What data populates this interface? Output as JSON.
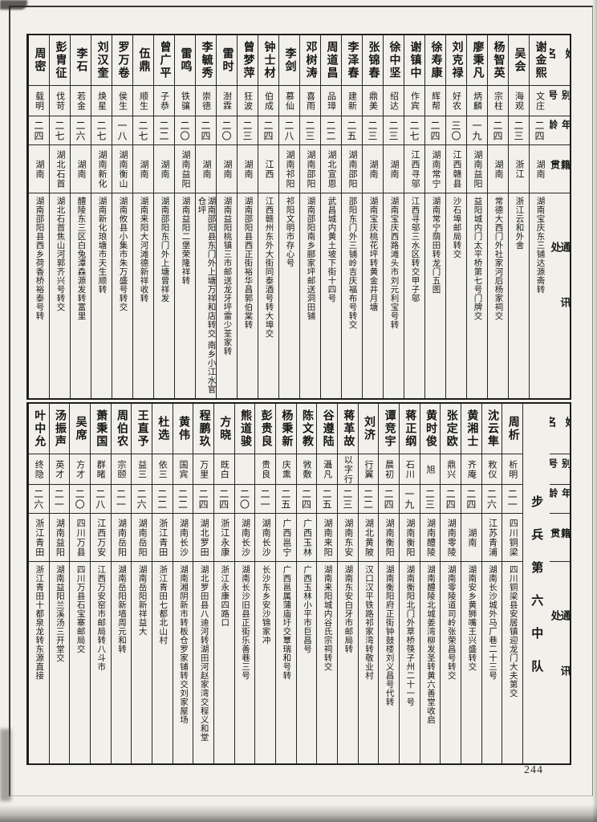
{
  "page": {
    "number": "244"
  },
  "headers": {
    "name": "姓名",
    "alias": "别号",
    "age": "年龄",
    "native": "籍贯",
    "address": "通讯处"
  },
  "section_title": "步兵第六中队",
  "top_table": {
    "entries": [
      {
        "name": "谢金熙",
        "alias": "文庄",
        "age": "二四",
        "native": "湖南",
        "address": "湖南宝庆东三铺达源斋转"
      },
      {
        "name": "吴会",
        "alias": "海观",
        "age": "二三",
        "native": "浙江",
        "address": "浙江云和外舍"
      },
      {
        "name": "杨智英",
        "alias": "宗柱",
        "age": "二四",
        "native": "湖南",
        "address": "常德大西门外社家河后杨家祠交"
      },
      {
        "name": "廖秉凡",
        "alias": "炳麟",
        "age": "一九",
        "native": "湖南益阳",
        "address": "益阳城内门太平桥第七号门牌交"
      },
      {
        "name": "刘克禄",
        "alias": "好农",
        "age": "三〇",
        "native": "江西赣县",
        "address": "沙石埠邮局转交"
      },
      {
        "name": "徐寿康",
        "alias": "辉帮",
        "age": "二四",
        "native": "湖南常宁",
        "address": "湖南常宁荫田转龙门五图"
      },
      {
        "name": "谢镇中",
        "alias": "作宾",
        "age": "二七",
        "native": "江西寻邬",
        "address": "江西寻邬三水区转交甲子邬"
      },
      {
        "name": "徐中坚",
        "alias": "绍达",
        "age": "二三",
        "native": "湖南",
        "address": "湖南宝庆西路滩头市刘元利宝号转"
      },
      {
        "name": "张锦春",
        "alias": "鼎美",
        "age": "二三",
        "native": "湖南",
        "address": "湖南宝庆桃花坪转黄金井月塘"
      },
      {
        "name": "李泽春",
        "alias": "建新",
        "age": "二五",
        "native": "湖南邵阳",
        "address": "邵阳东门外三铺岭吉庆福布号转交"
      },
      {
        "name": "周道昌",
        "alias": "品璋",
        "age": "二二",
        "native": "湖北宣恩",
        "address": "武昌城内黄土坡下街十四号"
      },
      {
        "name": "邓树涛",
        "alias": "喜雨",
        "age": "二三",
        "native": "湖南邵阳",
        "address": "湖南邵阳南乡郦家坪邮送洞田铺"
      },
      {
        "name": "李剑",
        "alias": "慕仙",
        "age": "二八",
        "native": "湖南祁阳",
        "address": "祁阳文明市存心号"
      },
      {
        "name": "钟士材",
        "alias": "伯成",
        "age": "二四",
        "native": "江西",
        "address": "江西赣州东外大街同泰酒号转大埠交"
      },
      {
        "name": "曾梦萍",
        "alias": "狂波",
        "age": "二三",
        "native": "湖南",
        "address": "湖南邵阳县西正街裕华昌郭伯棠转"
      },
      {
        "name": "雷时",
        "alias": "澍霖",
        "age": "二〇",
        "native": "湖南",
        "address": "湖南益阳桃镇三市邮送龙牙坪雷少荃家转"
      },
      {
        "name": "李毓秀",
        "alias": "崇德",
        "age": "二四",
        "native": "湖南",
        "address": "湖南邵阳县东门外上塘万祥和店转交 南乡小江水官仓坪"
      },
      {
        "name": "雷鸣",
        "alias": "铁骧",
        "age": "二〇",
        "native": "湖南益阳",
        "address": "湖南益阳二堡荣隆祥转"
      },
      {
        "name": "曾广平",
        "alias": "子恭",
        "age": "二二",
        "native": "湖南",
        "address": "湖南邵阳东门外上塘曾祥发"
      },
      {
        "name": "伍鼎",
        "alias": "顺生",
        "age": "二七",
        "native": "湖南",
        "address": "湖南来阳大河滩德新祥收转"
      },
      {
        "name": "罗万卷",
        "alias": "侯生",
        "age": "一八",
        "native": "湖南衡山",
        "address": "湖南攸县小集市朱万盛号转交"
      },
      {
        "name": "刘汉奎",
        "alias": "焕星",
        "age": "二七",
        "native": "湖南新化",
        "address": "湖南新化琅塘市天生顺转"
      },
      {
        "name": "李石",
        "alias": "若金",
        "age": "二六",
        "native": "湖南",
        "address": "醴陵东三区白兔潭森源发转富里"
      },
      {
        "name": "彭胄征",
        "alias": "伐苛",
        "age": "二七",
        "native": "湖北石首",
        "address": "湖北石首焦山河郭齐兴号转交"
      },
      {
        "name": "周密",
        "alias": "载明",
        "age": "二四",
        "native": "湖南",
        "address": "湖南邵阳县西乡荷香桥裕泰号转"
      }
    ]
  },
  "bottom_table": {
    "entries": [
      {
        "name": "周析",
        "alias": "析明",
        "age": "二一",
        "native": "四川铜梁",
        "address": "四川铜梁县安居镇迎龙门大夫第交"
      },
      {
        "name": "沈云隼",
        "alias": "敉仪",
        "age": "二六",
        "native": "江苏青浦",
        "address": "湖南长沙城外马厂巷二十三号"
      },
      {
        "name": "黄湘士",
        "alias": "齐庵",
        "age": "二四",
        "native": "湖南",
        "address": "湖南安乡黄狮嘴王兴盛转交"
      },
      {
        "name": "张定欧",
        "alias": "鼎兴",
        "age": "二四",
        "native": "湖南零陵",
        "address": "湖南零陵道司岭张荣昌号转交"
      },
      {
        "name": "黄时俊",
        "alias": "旭",
        "age": "二三",
        "native": "湖南醴陵",
        "address": "湖南醴陵北城姜湾柳发圣转黄六善堂收启"
      },
      {
        "name": "蒋正纲",
        "alias": "石川",
        "age": "一九",
        "native": "湖南衡阳",
        "address": "湖南衡阳北门外草桥筷子州二十一号"
      },
      {
        "name": "谭竞宇",
        "alias": "晨初",
        "age": "二四",
        "native": "湖南衡阳",
        "address": "湖南衡阳府正街钟鼓楼刘义昌号代转"
      },
      {
        "name": "刘济",
        "alias": "行翼",
        "age": "二二",
        "native": "湖北黄陂",
        "address": "汉口汉平铁路祁家湾转敬业村"
      },
      {
        "name": "蒋革故",
        "alias": "以字行",
        "age": "二三",
        "native": "湖南东安",
        "address": "湖南东安白牙市邮局转"
      },
      {
        "name": "谷遵陆",
        "alias": "灄凡",
        "age": "二五",
        "native": "湖南来阳",
        "address": "湖南来阳城内谷氏宗祠转交"
      },
      {
        "name": "陈文教",
        "alias": "敩敷",
        "age": "二四",
        "native": "广西玉林",
        "address": "广西玉林小平市巨昌号"
      },
      {
        "name": "杨秉新",
        "alias": "庆熏",
        "age": "二五",
        "native": "广西邕宁",
        "address": "广西邕属蒲庙圩交覃瑞和号转"
      },
      {
        "name": "彭贵良",
        "alias": "贵良",
        "age": "二一",
        "native": "湖南长沙",
        "address": "长沙东乡安沙锦家冲"
      },
      {
        "name": "熊道骏",
        "alias": "",
        "age": "二〇",
        "native": "湖南长沙",
        "address": "湖南长沙旧县正街乐善巷三号"
      },
      {
        "name": "方晓",
        "alias": "既白",
        "age": "二四",
        "native": "浙江永康",
        "address": "浙江永康四路口"
      },
      {
        "name": "程鹏玖",
        "alias": "万里",
        "age": "二四",
        "native": "湖北罗田",
        "address": "湖北罗田县八迪河转湖田河赵家湾交程义和堂"
      },
      {
        "name": "黄伟",
        "alias": "国宾",
        "age": "二二",
        "native": "湖南长沙",
        "address": "湖南湘阴新市转板仓罗家铺转交刘家屋场"
      },
      {
        "name": "杜选",
        "alias": "依三",
        "age": "二二",
        "native": "浙江青田",
        "address": "浙江青田七都北山村"
      },
      {
        "name": "王直予",
        "alias": "益三",
        "age": "二六",
        "native": "湖南岳阳",
        "address": "湖南岳阳新祥益大"
      },
      {
        "name": "周伯农",
        "alias": "宗颐",
        "age": "二一",
        "native": "湖南岳阳",
        "address": "湖南岳阳新墙周元和转"
      },
      {
        "name": "萧秉国",
        "alias": "群睹",
        "age": "二八",
        "native": "江西万安",
        "address": "江西万安窑市邮局转八斗市"
      },
      {
        "name": "吴席",
        "alias": "方才",
        "age": "二〇",
        "native": "四川万县",
        "address": "四川万县石宝寨邮局交"
      },
      {
        "name": "汤振声",
        "alias": "英才",
        "age": "二一",
        "native": "湖南益阳",
        "address": "湖南益阳兰溪汤三开堂交"
      },
      {
        "name": "叶中允",
        "alias": "终隐",
        "age": "二六",
        "native": "浙江青田",
        "address": "浙江青田十都泉龙转东源直接"
      }
    ]
  }
}
